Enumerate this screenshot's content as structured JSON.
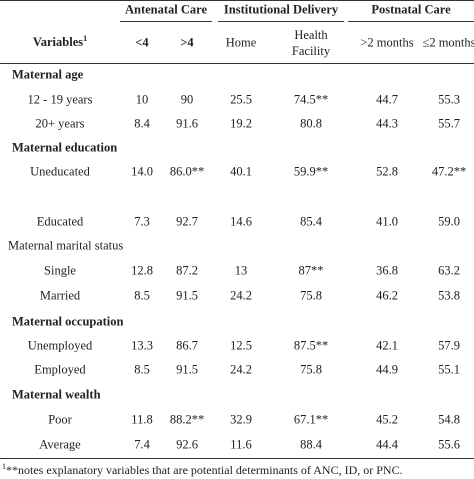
{
  "table": {
    "group_headers": [
      "Antenatal Care",
      "Institutional Delivery",
      "Postnatal Care"
    ],
    "column_headers": [
      "Variables",
      "<4",
      ">4",
      "Home",
      "Health Facility",
      ">2 months",
      "≤2 months"
    ],
    "variables_superscript": "1",
    "sections": [
      {
        "title": "Maternal age",
        "bold": true,
        "rows": [
          [
            "12 - 19 years",
            "10",
            "90",
            "25.5",
            "74.5**",
            "44.7",
            "55.3"
          ],
          [
            "20+ years",
            "8.4",
            "91.6",
            "19.2",
            "80.8",
            "44.3",
            "55.7"
          ]
        ]
      },
      {
        "title": "Maternal education",
        "bold": true,
        "rows": [
          [
            "Uneducated",
            "14.0",
            "86.0**",
            "40.1",
            "59.9**",
            "52.8",
            "47.2**"
          ],
          [
            "Educated",
            "7.3",
            "92.7",
            "14.6",
            "85.4",
            "41.0",
            "59.0"
          ]
        ]
      },
      {
        "title": "Maternal marital status",
        "bold": false,
        "rows": [
          [
            "Single",
            "12.8",
            "87.2",
            "13",
            "87**",
            "36.8",
            "63.2"
          ],
          [
            "Married",
            "8.5",
            "91.5",
            "24.2",
            "75.8",
            "46.2",
            "53.8"
          ]
        ]
      },
      {
        "title": "Maternal occupation",
        "bold": true,
        "rows": [
          [
            "Unemployed",
            "13.3",
            "86.7",
            "12.5",
            "87.5**",
            "42.1",
            "57.9"
          ],
          [
            "Employed",
            "8.5",
            "91.5",
            "24.2",
            "75.8",
            "44.9",
            "55.1"
          ]
        ]
      },
      {
        "title": "Maternal wealth",
        "bold": true,
        "rows": [
          [
            "Poor",
            "11.8",
            "88.2**",
            "32.9",
            "67.1**",
            "45.2",
            "54.8"
          ],
          [
            "Average",
            "7.4",
            "92.6",
            "11.6",
            "88.4",
            "44.4",
            "55.6"
          ]
        ]
      }
    ]
  },
  "footnote_marker": "1",
  "footnote": "**notes explanatory variables that are potential determinants of ANC, ID, or PNC."
}
